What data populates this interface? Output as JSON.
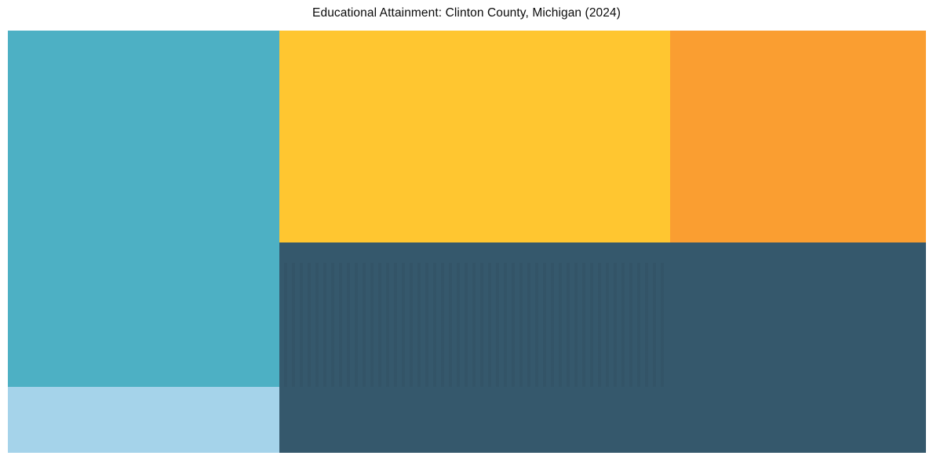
{
  "title": "Educational Attainment: Clinton County, Michigan (2024)",
  "chart_data": {
    "type": "treemap",
    "title": "Educational Attainment: Clinton County, Michigan (2024)",
    "legend_position": "none",
    "segments": [
      {
        "id": "teal",
        "color": "#4DB0C4",
        "area_pct": 24.9,
        "position": "left-top"
      },
      {
        "id": "light-blue",
        "color": "#A5D3EA",
        "area_pct": 4.6,
        "position": "left-bottom"
      },
      {
        "id": "golden-yellow",
        "color": "#FFC630",
        "area_pct": 21.3,
        "position": "center-top"
      },
      {
        "id": "orange",
        "color": "#FA9E31",
        "area_pct": 14.0,
        "position": "right-top"
      },
      {
        "id": "dark-slate",
        "color": "#35586C",
        "area_pct": 35.0,
        "position": "bottom-right-wide"
      }
    ]
  }
}
